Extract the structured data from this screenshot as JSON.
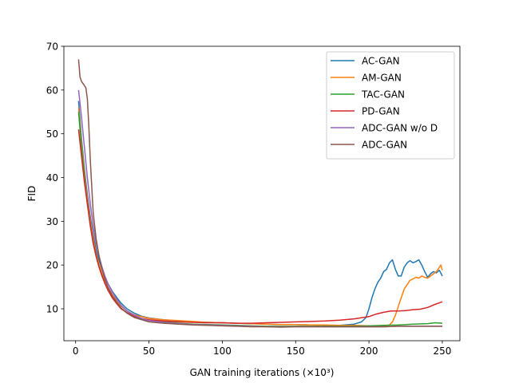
{
  "chart_data": {
    "type": "line",
    "title": "",
    "xlabel": "GAN training iterations (×10³)",
    "ylabel": "FID",
    "xlim": [
      -8,
      262
    ],
    "ylim": [
      2.7,
      70
    ],
    "xticks": [
      0,
      50,
      100,
      150,
      200,
      250
    ],
    "yticks": [
      10,
      20,
      30,
      40,
      50,
      60,
      70
    ],
    "grid": false,
    "legend_position": "top-right",
    "series": [
      {
        "name": "AC-GAN",
        "color": "#1f77b4",
        "points": [
          [
            2,
            57.5
          ],
          [
            4,
            49
          ],
          [
            6,
            42
          ],
          [
            8,
            36
          ],
          [
            10,
            31
          ],
          [
            12,
            27
          ],
          [
            14,
            23.5
          ],
          [
            16,
            21
          ],
          [
            18,
            19
          ],
          [
            20,
            17.3
          ],
          [
            22,
            15.8
          ],
          [
            25,
            14
          ],
          [
            28,
            12.6
          ],
          [
            31,
            11.3
          ],
          [
            35,
            10
          ],
          [
            40,
            9
          ],
          [
            45,
            8.3
          ],
          [
            50,
            7.9
          ],
          [
            60,
            7.5
          ],
          [
            70,
            7.2
          ],
          [
            80,
            7
          ],
          [
            90,
            6.9
          ],
          [
            100,
            6.8
          ],
          [
            110,
            6.7
          ],
          [
            120,
            6.6
          ],
          [
            130,
            6.5
          ],
          [
            140,
            6.4
          ],
          [
            150,
            6.4
          ],
          [
            160,
            6.3
          ],
          [
            170,
            6.2
          ],
          [
            180,
            6.2
          ],
          [
            190,
            6.5
          ],
          [
            195,
            7
          ],
          [
            198,
            8
          ],
          [
            200,
            10
          ],
          [
            202,
            12.5
          ],
          [
            204,
            14.5
          ],
          [
            206,
            16
          ],
          [
            208,
            17
          ],
          [
            210,
            18.5
          ],
          [
            212,
            19
          ],
          [
            214,
            20.5
          ],
          [
            216,
            21.2
          ],
          [
            218,
            19
          ],
          [
            220,
            17.5
          ],
          [
            222,
            17.5
          ],
          [
            224,
            19.5
          ],
          [
            226,
            20.5
          ],
          [
            228,
            21
          ],
          [
            230,
            20.5
          ],
          [
            232,
            20.8
          ],
          [
            234,
            21.2
          ],
          [
            236,
            20
          ],
          [
            238,
            18.5
          ],
          [
            240,
            17.2
          ],
          [
            242,
            18
          ],
          [
            244,
            18.5
          ],
          [
            246,
            18.2
          ],
          [
            248,
            18.8
          ],
          [
            250,
            17.5
          ]
        ]
      },
      {
        "name": "AM-GAN",
        "color": "#ff7f0e",
        "points": [
          [
            2,
            56
          ],
          [
            4,
            48
          ],
          [
            6,
            41
          ],
          [
            8,
            35
          ],
          [
            10,
            30
          ],
          [
            12,
            26
          ],
          [
            14,
            22.5
          ],
          [
            16,
            20
          ],
          [
            18,
            18
          ],
          [
            20,
            16.5
          ],
          [
            22,
            15
          ],
          [
            25,
            13.2
          ],
          [
            28,
            11.8
          ],
          [
            31,
            10.6
          ],
          [
            35,
            9.5
          ],
          [
            40,
            8.6
          ],
          [
            45,
            8.2
          ],
          [
            50,
            7.8
          ],
          [
            60,
            7.5
          ],
          [
            70,
            7.3
          ],
          [
            80,
            7.1
          ],
          [
            90,
            6.9
          ],
          [
            100,
            6.8
          ],
          [
            110,
            6.7
          ],
          [
            120,
            6.6
          ],
          [
            130,
            6.5
          ],
          [
            140,
            6.4
          ],
          [
            150,
            6.4
          ],
          [
            160,
            6.3
          ],
          [
            170,
            6.3
          ],
          [
            180,
            6.2
          ],
          [
            190,
            6.2
          ],
          [
            200,
            6.1
          ],
          [
            210,
            6.1
          ],
          [
            214,
            6.3
          ],
          [
            216,
            7
          ],
          [
            218,
            8.5
          ],
          [
            220,
            10.5
          ],
          [
            222,
            12.5
          ],
          [
            224,
            14.5
          ],
          [
            226,
            15.5
          ],
          [
            228,
            16.5
          ],
          [
            230,
            16.8
          ],
          [
            232,
            17.2
          ],
          [
            234,
            17
          ],
          [
            236,
            17.5
          ],
          [
            238,
            17.2
          ],
          [
            240,
            17
          ],
          [
            242,
            17.5
          ],
          [
            244,
            18
          ],
          [
            246,
            18.5
          ],
          [
            248,
            19.5
          ],
          [
            249,
            20
          ],
          [
            250,
            18.8
          ]
        ]
      },
      {
        "name": "TAC-GAN",
        "color": "#2ca02c",
        "points": [
          [
            2,
            55
          ],
          [
            4,
            47
          ],
          [
            6,
            40
          ],
          [
            8,
            34
          ],
          [
            10,
            29
          ],
          [
            12,
            25
          ],
          [
            14,
            22
          ],
          [
            16,
            19.5
          ],
          [
            18,
            17.5
          ],
          [
            20,
            15.8
          ],
          [
            22,
            14.3
          ],
          [
            25,
            12.6
          ],
          [
            28,
            11.2
          ],
          [
            31,
            10.1
          ],
          [
            35,
            9.1
          ],
          [
            40,
            8.3
          ],
          [
            45,
            7.7
          ],
          [
            50,
            7.3
          ],
          [
            60,
            7
          ],
          [
            70,
            6.7
          ],
          [
            80,
            6.5
          ],
          [
            90,
            6.4
          ],
          [
            100,
            6.3
          ],
          [
            110,
            6.2
          ],
          [
            120,
            6.1
          ],
          [
            130,
            6
          ],
          [
            140,
            6
          ],
          [
            150,
            6
          ],
          [
            160,
            6
          ],
          [
            170,
            6
          ],
          [
            180,
            6
          ],
          [
            190,
            6
          ],
          [
            200,
            6.1
          ],
          [
            210,
            6.2
          ],
          [
            220,
            6.3
          ],
          [
            230,
            6.5
          ],
          [
            240,
            6.6
          ],
          [
            245,
            6.8
          ],
          [
            250,
            6.7
          ]
        ]
      },
      {
        "name": "PD-GAN",
        "color": "#d62728",
        "points": [
          [
            2,
            51
          ],
          [
            4,
            45
          ],
          [
            6,
            39
          ],
          [
            8,
            34
          ],
          [
            10,
            29
          ],
          [
            12,
            25
          ],
          [
            14,
            22
          ],
          [
            16,
            19.5
          ],
          [
            18,
            17.5
          ],
          [
            20,
            15.8
          ],
          [
            22,
            14.3
          ],
          [
            25,
            12.5
          ],
          [
            28,
            11.2
          ],
          [
            31,
            10
          ],
          [
            35,
            9.1
          ],
          [
            40,
            8.3
          ],
          [
            45,
            7.8
          ],
          [
            50,
            7.5
          ],
          [
            60,
            7.2
          ],
          [
            70,
            7
          ],
          [
            80,
            6.9
          ],
          [
            90,
            6.8
          ],
          [
            100,
            6.8
          ],
          [
            110,
            6.7
          ],
          [
            120,
            6.7
          ],
          [
            130,
            6.8
          ],
          [
            140,
            6.9
          ],
          [
            150,
            7
          ],
          [
            160,
            7.1
          ],
          [
            170,
            7.2
          ],
          [
            180,
            7.4
          ],
          [
            190,
            7.7
          ],
          [
            200,
            8.2
          ],
          [
            205,
            8.8
          ],
          [
            210,
            9.2
          ],
          [
            215,
            9.5
          ],
          [
            220,
            9.5
          ],
          [
            225,
            9.6
          ],
          [
            230,
            9.8
          ],
          [
            235,
            9.9
          ],
          [
            240,
            10.3
          ],
          [
            245,
            11
          ],
          [
            250,
            11.6
          ]
        ]
      },
      {
        "name": "ADC-GAN w/o D",
        "color": "#9467bd",
        "points": [
          [
            2,
            60
          ],
          [
            4,
            54
          ],
          [
            6,
            47
          ],
          [
            8,
            40
          ],
          [
            10,
            34
          ],
          [
            12,
            29
          ],
          [
            14,
            25
          ],
          [
            16,
            22
          ],
          [
            18,
            19.5
          ],
          [
            20,
            17.5
          ],
          [
            22,
            15.8
          ],
          [
            25,
            13.8
          ],
          [
            28,
            12.2
          ],
          [
            31,
            10.8
          ],
          [
            35,
            9.5
          ],
          [
            40,
            8.5
          ],
          [
            45,
            7.8
          ],
          [
            50,
            7.3
          ],
          [
            60,
            6.9
          ],
          [
            70,
            6.6
          ],
          [
            80,
            6.4
          ],
          [
            90,
            6.3
          ],
          [
            100,
            6.2
          ],
          [
            110,
            6.1
          ],
          [
            120,
            6
          ],
          [
            130,
            5.9
          ],
          [
            140,
            5.9
          ],
          [
            150,
            5.9
          ],
          [
            160,
            5.9
          ],
          [
            170,
            5.9
          ],
          [
            180,
            5.9
          ],
          [
            190,
            5.9
          ],
          [
            200,
            5.9
          ],
          [
            210,
            5.9
          ],
          [
            220,
            6
          ],
          [
            230,
            6
          ],
          [
            240,
            6
          ],
          [
            250,
            6
          ]
        ]
      },
      {
        "name": "ADC-GAN",
        "color": "#8c564b",
        "points": [
          [
            2,
            67
          ],
          [
            3,
            63
          ],
          [
            4,
            62
          ],
          [
            5,
            61.5
          ],
          [
            6,
            61
          ],
          [
            7,
            60.5
          ],
          [
            8,
            58
          ],
          [
            9,
            52
          ],
          [
            10,
            44
          ],
          [
            11,
            38
          ],
          [
            12,
            32
          ],
          [
            14,
            26
          ],
          [
            16,
            22
          ],
          [
            18,
            19
          ],
          [
            20,
            16.8
          ],
          [
            22,
            15
          ],
          [
            25,
            13
          ],
          [
            28,
            11.5
          ],
          [
            31,
            10.2
          ],
          [
            35,
            9
          ],
          [
            40,
            8
          ],
          [
            45,
            7.5
          ],
          [
            50,
            7
          ],
          [
            60,
            6.7
          ],
          [
            70,
            6.5
          ],
          [
            80,
            6.3
          ],
          [
            90,
            6.2
          ],
          [
            100,
            6.1
          ],
          [
            110,
            6
          ],
          [
            120,
            5.9
          ],
          [
            130,
            5.9
          ],
          [
            140,
            5.8
          ],
          [
            150,
            5.9
          ],
          [
            160,
            5.9
          ],
          [
            170,
            5.9
          ],
          [
            180,
            5.9
          ],
          [
            190,
            5.9
          ],
          [
            200,
            5.9
          ],
          [
            210,
            5.9
          ],
          [
            220,
            6
          ],
          [
            230,
            6
          ],
          [
            240,
            6
          ],
          [
            250,
            6
          ]
        ]
      }
    ]
  }
}
